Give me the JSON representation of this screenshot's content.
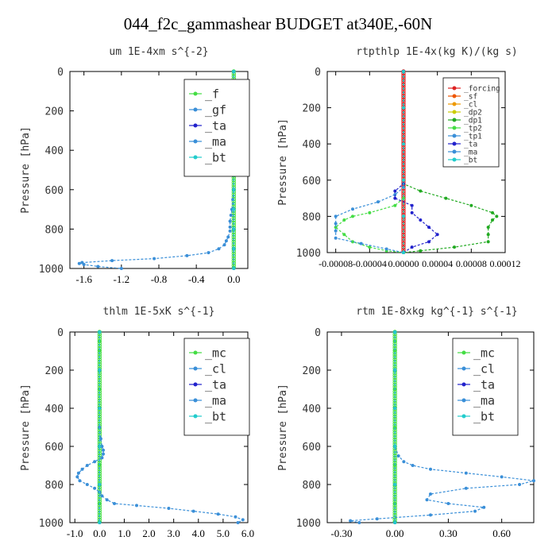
{
  "figure_title": "044_f2c_gammashear  BUDGET at340E,-60N",
  "chart_data": [
    {
      "type": "line",
      "title": "um   1E-4xm s^{-2}",
      "ylabel": "Pressure [hPa]",
      "ylim": [
        1000,
        0
      ],
      "xlim": [
        -1.75,
        0.15
      ],
      "xticks": [
        "-1.6",
        "-1.2",
        "-0.8",
        "-0.4",
        "0.0"
      ],
      "xtick_values": [
        -1.6,
        -1.2,
        -0.8,
        -0.4,
        0.0
      ],
      "yticks": [
        "0",
        "200",
        "400",
        "600",
        "800",
        "1000"
      ],
      "legend_position": "top-right",
      "series": [
        {
          "name": "_f",
          "color": "#44dd44",
          "y": [
            0,
            50,
            100,
            200,
            300,
            400,
            500,
            600,
            700,
            800,
            900,
            1000
          ],
          "x": [
            0,
            0,
            0,
            0,
            0,
            0,
            0,
            0,
            0,
            0,
            0,
            0
          ]
        },
        {
          "name": "_gf",
          "color": "#3a8fd8",
          "y": [
            0,
            50,
            100,
            200,
            300,
            400,
            500,
            600,
            700,
            800,
            900,
            1000
          ],
          "x": [
            0,
            0,
            0,
            0,
            0,
            0,
            0,
            0,
            0,
            0,
            0,
            0
          ]
        },
        {
          "name": "_ta",
          "color": "#2222cc",
          "y": [
            0,
            50,
            100,
            200,
            300,
            400,
            500,
            600,
            700,
            800,
            900,
            1000
          ],
          "x": [
            0,
            0,
            0,
            0,
            0,
            0,
            0,
            0,
            0,
            0,
            0,
            0
          ]
        },
        {
          "name": "_ma",
          "color": "#3a8fd8",
          "y": [
            0,
            100,
            200,
            300,
            400,
            500,
            600,
            650,
            700,
            730,
            760,
            790,
            810,
            840,
            860,
            880,
            900,
            920,
            935,
            950,
            960,
            970,
            975,
            980,
            990,
            1000
          ],
          "x": [
            0,
            0,
            0,
            0,
            0,
            0,
            0,
            -0.01,
            -0.02,
            -0.03,
            -0.04,
            -0.04,
            -0.04,
            -0.06,
            -0.08,
            -0.1,
            -0.16,
            -0.27,
            -0.5,
            -0.85,
            -1.3,
            -1.62,
            -1.65,
            -1.6,
            -1.45,
            -1.2
          ]
        },
        {
          "name": "_bt",
          "color": "#22cccc",
          "y": [
            0,
            50,
            100,
            200,
            300,
            400,
            500,
            600,
            700,
            800,
            900,
            1000
          ],
          "x": [
            0,
            0,
            0,
            0,
            0,
            0,
            0,
            0,
            0,
            0,
            0,
            0
          ]
        }
      ]
    },
    {
      "type": "line",
      "title": "rtpthlp   1E-4x(kg K)/(kg s)",
      "ylabel": "Pressure [hPa]",
      "ylim": [
        1000,
        0
      ],
      "xlim": [
        -9e-05,
        0.00012
      ],
      "xticks": [
        "-0.00008",
        "-0.00004",
        "0.00000",
        "0.00004",
        "0.00008",
        "0.00012"
      ],
      "xtick_values": [
        -8e-05,
        -4e-05,
        0,
        4e-05,
        8e-05,
        0.00012
      ],
      "yticks": [
        "0",
        "200",
        "400",
        "600",
        "800",
        "1000"
      ],
      "legend_position": "top-right",
      "series": [
        {
          "name": "_forcing",
          "color": "#dd2222",
          "y": [
            0,
            200,
            400,
            600,
            800,
            1000
          ],
          "x": [
            0,
            0,
            0,
            0,
            0,
            0
          ]
        },
        {
          "name": "_sf",
          "color": "#ee5500",
          "y": [
            0,
            200,
            400,
            600,
            800,
            1000
          ],
          "x": [
            0,
            0,
            0,
            0,
            0,
            0
          ]
        },
        {
          "name": "_cl",
          "color": "#ee9900",
          "y": [
            0,
            200,
            400,
            600,
            800,
            1000
          ],
          "x": [
            0,
            0,
            0,
            0,
            0,
            0
          ]
        },
        {
          "name": "_dp2",
          "color": "#cccc00",
          "y": [
            0,
            200,
            400,
            600,
            800,
            1000
          ],
          "x": [
            0,
            0,
            0,
            0,
            0,
            0
          ]
        },
        {
          "name": "_dp1",
          "color": "#22aa22",
          "y": [
            0,
            620,
            660,
            700,
            740,
            780,
            800,
            820,
            860,
            900,
            940,
            970,
            990,
            1000
          ],
          "x": [
            0,
            0,
            2e-05,
            5e-05,
            8e-05,
            0.000105,
            0.00011,
            0.000105,
            0.0001,
            0.0001,
            0.0001,
            6e-05,
            2e-05,
            0
          ]
        },
        {
          "name": "_tp2",
          "color": "#44dd44",
          "y": [
            0,
            700,
            740,
            780,
            800,
            820,
            860,
            900,
            940,
            970,
            990,
            1000
          ],
          "x": [
            0,
            0,
            -1e-05,
            -4e-05,
            -6e-05,
            -7e-05,
            -8e-05,
            -7e-05,
            -6e-05,
            -4e-05,
            -2e-05,
            0
          ]
        },
        {
          "name": "_tp1",
          "color": "#3a8fd8",
          "y": [
            0,
            640,
            680,
            720,
            760,
            800,
            840,
            880,
            920,
            950,
            980,
            1000
          ],
          "x": [
            0,
            0,
            -1e-05,
            -3e-05,
            -6e-05,
            -8e-05,
            -8e-05,
            -8e-05,
            -8e-05,
            -5e-05,
            -2e-05,
            0
          ]
        },
        {
          "name": "_ta",
          "color": "#2222cc",
          "y": [
            0,
            620,
            660,
            700,
            740,
            780,
            820,
            860,
            900,
            940,
            970,
            1000
          ],
          "x": [
            0,
            0,
            -1e-05,
            -1e-05,
            1e-05,
            1e-05,
            2e-05,
            3e-05,
            4e-05,
            3e-05,
            1e-05,
            0
          ]
        },
        {
          "name": "_ma",
          "color": "#3a8fd8",
          "y": [
            0,
            200,
            400,
            600,
            800,
            1000
          ],
          "x": [
            0,
            0,
            0,
            0,
            0,
            0
          ]
        },
        {
          "name": "_bt",
          "color": "#22cccc",
          "y": [
            0,
            200,
            400,
            600,
            800,
            1000
          ],
          "x": [
            0,
            0,
            0,
            0,
            0,
            0
          ]
        }
      ]
    },
    {
      "type": "line",
      "title": "thlm   1E-5xK s^{-1}",
      "ylabel": "Pressure [hPa]",
      "ylim": [
        1000,
        0
      ],
      "xlim": [
        -1.2,
        6.0
      ],
      "xticks": [
        "-1.0",
        "0.0",
        "1.0",
        "2.0",
        "3.0",
        "4.0",
        "5.0",
        "6.0"
      ],
      "xtick_values": [
        -1.0,
        0.0,
        1.0,
        2.0,
        3.0,
        4.0,
        5.0,
        6.0
      ],
      "yticks": [
        "0",
        "200",
        "400",
        "600",
        "800",
        "1000"
      ],
      "legend_position": "top-right",
      "series": [
        {
          "name": "_mc",
          "color": "#44dd44",
          "y": [
            0,
            50,
            100,
            200,
            300,
            400,
            500,
            600,
            700,
            800,
            900,
            1000
          ],
          "x": [
            0,
            0,
            0,
            0,
            0,
            0,
            0,
            0,
            0,
            0,
            0,
            0
          ]
        },
        {
          "name": "_cl",
          "color": "#3a8fd8",
          "y": [
            0,
            200,
            400,
            600,
            800,
            1000
          ],
          "x": [
            0,
            0,
            0,
            0,
            0,
            0
          ]
        },
        {
          "name": "_ta",
          "color": "#2222cc",
          "y": [
            0,
            200,
            400,
            600,
            800,
            1000
          ],
          "x": [
            0,
            0,
            0,
            0,
            0,
            0
          ]
        },
        {
          "name": "_ma",
          "color": "#3a8fd8",
          "y": [
            0,
            500,
            560,
            600,
            620,
            640,
            660,
            680,
            700,
            720,
            740,
            760,
            780,
            800,
            820,
            840,
            860,
            880,
            900,
            910,
            925,
            940,
            955,
            970,
            985,
            1000
          ],
          "x": [
            0,
            0,
            0.05,
            0.1,
            0.15,
            0.15,
            0.1,
            -0.2,
            -0.5,
            -0.7,
            -0.85,
            -0.9,
            -0.8,
            -0.5,
            -0.2,
            0,
            0.1,
            0.3,
            0.6,
            1.5,
            2.8,
            3.8,
            4.8,
            5.5,
            5.8,
            5.6
          ]
        },
        {
          "name": "_bt",
          "color": "#22cccc",
          "y": [
            0,
            200,
            400,
            600,
            800,
            1000
          ],
          "x": [
            0,
            0,
            0,
            0,
            0,
            0
          ]
        }
      ]
    },
    {
      "type": "line",
      "title": "rtm   1E-8xkg kg^{-1} s^{-1}",
      "ylabel": "Pressure [hPa]",
      "ylim": [
        1000,
        0
      ],
      "xlim": [
        -0.38,
        0.78
      ],
      "xticks": [
        "-0.30",
        "0.00",
        "0.30",
        "0.60"
      ],
      "xtick_values": [
        -0.3,
        0.0,
        0.3,
        0.6
      ],
      "yticks": [
        "0",
        "200",
        "400",
        "600",
        "800",
        "1000"
      ],
      "legend_position": "top-right",
      "series": [
        {
          "name": "_mc",
          "color": "#44dd44",
          "y": [
            0,
            50,
            100,
            200,
            300,
            400,
            500,
            600,
            700,
            800,
            900,
            1000
          ],
          "x": [
            0,
            0,
            0,
            0,
            0,
            0,
            0,
            0,
            0,
            0,
            0,
            0
          ]
        },
        {
          "name": "_cl",
          "color": "#3a8fd8",
          "y": [
            0,
            200,
            400,
            600,
            800,
            1000
          ],
          "x": [
            0,
            0,
            0,
            0,
            0,
            0
          ]
        },
        {
          "name": "_ta",
          "color": "#2222cc",
          "y": [
            0,
            200,
            400,
            600,
            800,
            1000
          ],
          "x": [
            0,
            0,
            0,
            0,
            0,
            0
          ]
        },
        {
          "name": "_ma",
          "color": "#3a8fd8",
          "y": [
            0,
            600,
            650,
            680,
            700,
            720,
            740,
            760,
            780,
            800,
            820,
            850,
            880,
            900,
            920,
            940,
            960,
            980,
            990,
            1000
          ],
          "x": [
            0,
            0,
            0.02,
            0.05,
            0.1,
            0.2,
            0.4,
            0.6,
            0.78,
            0.7,
            0.4,
            0.2,
            0.18,
            0.3,
            0.5,
            0.45,
            0.2,
            -0.1,
            -0.25,
            -0.2
          ]
        },
        {
          "name": "_bt",
          "color": "#22cccc",
          "y": [
            0,
            200,
            400,
            600,
            800,
            1000
          ],
          "x": [
            0,
            0,
            0,
            0,
            0,
            0
          ]
        }
      ]
    }
  ]
}
